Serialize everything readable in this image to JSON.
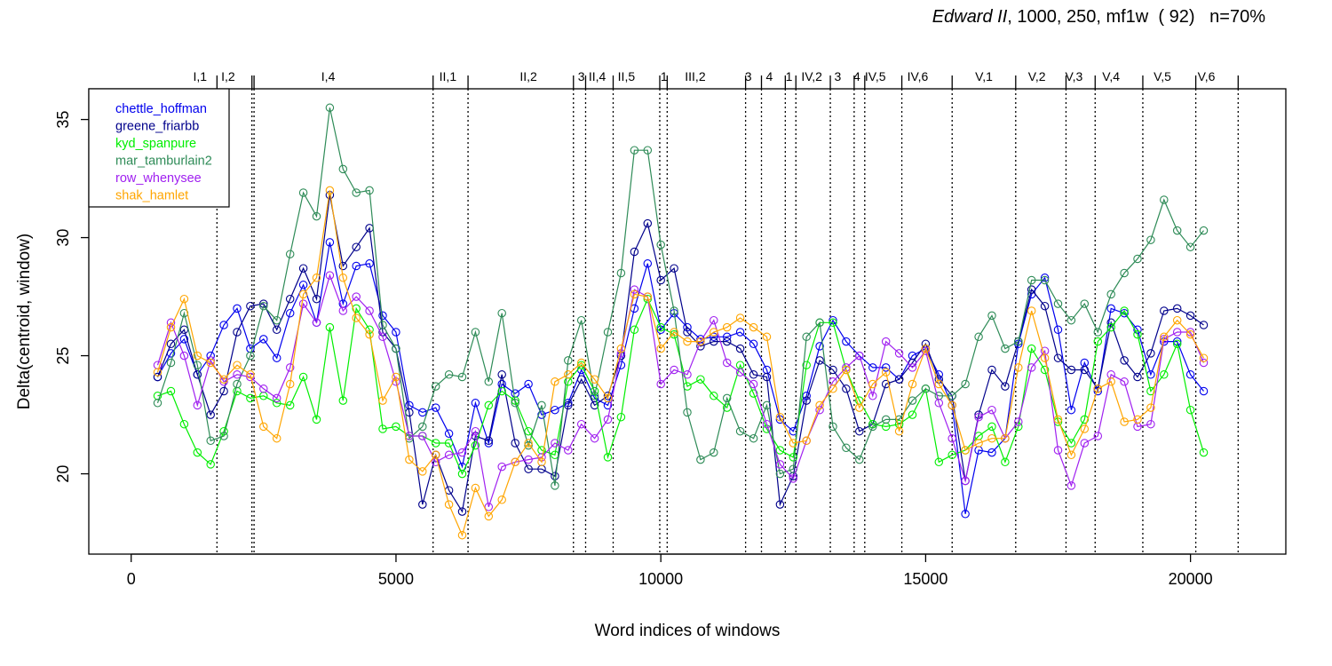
{
  "chart_data": {
    "type": "line",
    "title_play": "Edward II",
    "title_rest": ", 1000, 250, mf1w  ( 92)   n=70%",
    "xlabel": "Word indices of windows",
    "ylabel": "Delta(centroid, window)",
    "xlim": [
      -800,
      21800
    ],
    "ylim": [
      16.6,
      36.3
    ],
    "xticks": [
      0,
      5000,
      10000,
      15000,
      20000
    ],
    "xtick_labels": [
      "0",
      "5000",
      "10000",
      "15000",
      "20000"
    ],
    "yticks": [
      20,
      25,
      30,
      35
    ],
    "ytick_labels": [
      "20",
      "25",
      "30",
      "35"
    ],
    "legend_position": "top-left",
    "scene_boundaries": [
      1620,
      2280,
      2320,
      5700,
      6360,
      8350,
      8580,
      9100,
      9980,
      10120,
      11600,
      11900,
      12350,
      12550,
      13200,
      13650,
      13850,
      14550,
      15500,
      16700,
      17650,
      18200,
      19100,
      20100,
      20900
    ],
    "scene_labels": [
      {
        "label": "I,1",
        "x": 1300
      },
      {
        "label": "I,2",
        "x": 1830
      },
      {
        "label": "I,4",
        "x": 3720
      },
      {
        "label": "II,1",
        "x": 5980
      },
      {
        "label": "II,2",
        "x": 7500
      },
      {
        "label": "3",
        "x": 8500
      },
      {
        "label": "II,4",
        "x": 8800
      },
      {
        "label": "II,5",
        "x": 9350
      },
      {
        "label": "1",
        "x": 10060
      },
      {
        "label": "III,2",
        "x": 10650
      },
      {
        "label": "3",
        "x": 11650
      },
      {
        "label": "4",
        "x": 12050
      },
      {
        "label": "1",
        "x": 12420
      },
      {
        "label": "IV,2",
        "x": 12850
      },
      {
        "label": "3",
        "x": 13340
      },
      {
        "label": "4",
        "x": 13700
      },
      {
        "label": "IV,5",
        "x": 14050
      },
      {
        "label": "IV,6",
        "x": 14850
      },
      {
        "label": "V,1",
        "x": 16100
      },
      {
        "label": "V,2",
        "x": 17100
      },
      {
        "label": "V,3",
        "x": 17800
      },
      {
        "label": "V,4",
        "x": 18500
      },
      {
        "label": "V,5",
        "x": 19470
      },
      {
        "label": "V,6",
        "x": 20300
      }
    ],
    "x": [
      500,
      750,
      1000,
      1250,
      1500,
      1750,
      2000,
      2250,
      2500,
      2750,
      3000,
      3250,
      3500,
      3750,
      4000,
      4250,
      4500,
      4750,
      5000,
      5250,
      5500,
      5750,
      6000,
      6250,
      6500,
      6750,
      7000,
      7250,
      7500,
      7750,
      8000,
      8250,
      8500,
      8750,
      9000,
      9250,
      9500,
      9750,
      10000,
      10250,
      10500,
      10750,
      11000,
      11250,
      11500,
      11750,
      12000,
      12250,
      12500,
      12750,
      13000,
      13250,
      13500,
      13750,
      14000,
      14250,
      14500,
      14750,
      15000,
      15250,
      15500,
      15750,
      16000,
      16250,
      16500,
      16750,
      17000,
      17250,
      17500,
      17750,
      18000,
      18250,
      18500,
      18750,
      19000,
      19250,
      19500,
      19750,
      20000,
      20250
    ],
    "series": [
      {
        "name": "chettle_hoffman",
        "color": "#0000ee",
        "values": [
          24.1,
          25.1,
          25.7,
          24.2,
          25.0,
          26.3,
          27.0,
          25.3,
          25.7,
          24.9,
          26.8,
          28.0,
          26.4,
          29.8,
          27.2,
          28.8,
          28.9,
          26.7,
          26.0,
          22.9,
          22.6,
          22.8,
          21.7,
          20.3,
          23.0,
          21.3,
          23.8,
          23.4,
          23.8,
          22.5,
          22.7,
          23.0,
          24.4,
          23.2,
          22.9,
          24.6,
          27.0,
          28.9,
          26.1,
          26.8,
          26.2,
          25.7,
          25.8,
          25.8,
          26.0,
          25.5,
          24.4,
          22.3,
          21.8,
          23.3,
          25.4,
          26.5,
          25.6,
          25.0,
          24.5,
          24.5,
          24.0,
          25.0,
          25.3,
          24.2,
          22.9,
          18.3,
          21.0,
          20.9,
          21.5,
          25.5,
          27.6,
          28.3,
          26.1,
          22.7,
          24.7,
          23.5,
          27.0,
          26.8,
          26.1,
          24.2,
          25.6,
          25.6,
          24.2,
          23.5
        ]
      },
      {
        "name": "greene_friarbb",
        "color": "#00008b",
        "values": [
          24.1,
          25.5,
          26.1,
          24.2,
          22.5,
          23.5,
          26.0,
          27.1,
          27.2,
          26.1,
          27.4,
          28.7,
          27.4,
          31.8,
          28.8,
          29.6,
          30.4,
          26.0,
          25.3,
          22.6,
          18.7,
          20.8,
          19.3,
          18.4,
          21.6,
          21.4,
          24.2,
          21.3,
          20.2,
          20.2,
          19.9,
          22.9,
          24.0,
          22.9,
          23.3,
          25.0,
          29.4,
          30.6,
          28.2,
          28.7,
          26.0,
          25.4,
          25.6,
          25.6,
          25.3,
          24.2,
          24.1,
          18.7,
          19.9,
          23.1,
          24.8,
          24.4,
          23.6,
          21.8,
          22.1,
          23.8,
          24.0,
          24.7,
          25.5,
          24.0,
          23.3,
          19.7,
          22.5,
          24.4,
          23.7,
          25.6,
          27.8,
          27.1,
          24.9,
          24.4,
          24.4,
          23.6,
          26.4,
          24.8,
          24.1,
          25.1,
          26.9,
          27.0,
          26.7,
          26.3
        ]
      },
      {
        "name": "kyd_spanpure",
        "color": "#00ee00",
        "values": [
          23.3,
          23.5,
          22.1,
          20.9,
          20.4,
          21.8,
          23.5,
          23.2,
          23.3,
          23.0,
          22.9,
          24.1,
          22.3,
          26.2,
          23.1,
          27.0,
          26.1,
          21.9,
          22.0,
          21.6,
          21.6,
          21.3,
          21.3,
          20.0,
          21.2,
          22.9,
          23.5,
          23.1,
          21.8,
          21.0,
          20.8,
          23.9,
          24.6,
          23.5,
          20.7,
          22.4,
          26.1,
          27.4,
          26.2,
          25.9,
          23.7,
          24.0,
          23.3,
          22.8,
          24.6,
          23.4,
          21.9,
          21.0,
          20.7,
          24.6,
          26.4,
          26.4,
          24.4,
          23.1,
          22.1,
          22.0,
          22.1,
          22.5,
          23.6,
          20.5,
          20.8,
          21.0,
          21.6,
          22.0,
          20.5,
          22.0,
          25.3,
          24.4,
          22.2,
          21.3,
          22.3,
          25.6,
          26.2,
          26.9,
          25.9,
          23.5,
          24.2,
          25.5,
          22.7,
          20.9
        ]
      },
      {
        "name": "mar_tamburlain2",
        "color": "#2e8b57",
        "values": [
          23.0,
          24.7,
          26.8,
          24.6,
          21.4,
          21.6,
          23.8,
          25.0,
          27.1,
          26.5,
          29.3,
          31.9,
          30.9,
          35.5,
          32.9,
          31.9,
          32.0,
          26.3,
          25.3,
          21.5,
          22.0,
          23.7,
          24.2,
          24.1,
          26.0,
          23.9,
          26.8,
          23.0,
          21.2,
          22.9,
          19.5,
          24.8,
          26.5,
          23.3,
          26.0,
          28.5,
          33.7,
          33.7,
          29.7,
          26.9,
          22.6,
          20.6,
          20.9,
          23.2,
          21.8,
          21.5,
          22.9,
          20.0,
          20.2,
          25.8,
          26.4,
          22.0,
          21.1,
          20.6,
          22.0,
          22.3,
          22.3,
          23.1,
          23.6,
          23.3,
          23.3,
          23.8,
          25.8,
          26.7,
          25.3,
          25.6,
          28.2,
          28.2,
          27.2,
          26.5,
          27.2,
          26.0,
          27.6,
          28.5,
          29.1,
          29.9,
          31.6,
          30.3,
          29.6,
          30.3
        ]
      },
      {
        "name": "row_whenysee",
        "color": "#a020f0",
        "values": [
          24.6,
          26.4,
          25.0,
          22.9,
          24.8,
          23.9,
          24.2,
          24.1,
          23.6,
          23.2,
          24.5,
          27.2,
          26.4,
          28.4,
          26.9,
          27.5,
          26.9,
          25.8,
          23.9,
          21.6,
          21.6,
          20.5,
          20.8,
          20.9,
          21.8,
          18.6,
          20.3,
          20.5,
          20.6,
          20.7,
          21.3,
          21.0,
          22.1,
          21.5,
          22.3,
          25.1,
          27.8,
          27.5,
          23.8,
          24.4,
          24.2,
          25.6,
          26.5,
          24.7,
          24.3,
          23.8,
          22.1,
          20.4,
          19.8,
          21.4,
          22.7,
          23.9,
          24.5,
          25.0,
          23.3,
          25.6,
          25.1,
          24.5,
          25.2,
          23.0,
          21.5,
          19.7,
          22.4,
          22.7,
          21.5,
          22.2,
          24.5,
          25.2,
          21.0,
          19.5,
          21.3,
          21.6,
          24.2,
          23.9,
          22.0,
          22.1,
          25.7,
          26.0,
          26.0,
          24.7
        ]
      },
      {
        "name": "shak_hamlet",
        "color": "#ffa500",
        "values": [
          24.3,
          26.2,
          27.4,
          25.0,
          24.7,
          24.0,
          24.6,
          24.2,
          22.0,
          21.5,
          23.8,
          27.6,
          28.3,
          32.0,
          28.3,
          26.6,
          25.9,
          23.1,
          24.1,
          20.6,
          20.1,
          20.8,
          18.7,
          17.4,
          19.4,
          18.2,
          18.9,
          20.5,
          21.3,
          20.5,
          23.9,
          24.2,
          24.7,
          24.0,
          23.2,
          25.3,
          27.6,
          27.5,
          25.3,
          26.0,
          25.6,
          25.6,
          26.0,
          26.2,
          26.6,
          26.2,
          25.8,
          22.4,
          21.3,
          21.4,
          22.9,
          23.6,
          24.4,
          22.8,
          23.8,
          24.3,
          21.8,
          23.8,
          25.3,
          23.8,
          22.9,
          21.0,
          21.3,
          21.5,
          21.5,
          24.5,
          26.9,
          24.9,
          22.3,
          20.8,
          21.9,
          23.6,
          23.9,
          22.2,
          22.3,
          22.8,
          25.8,
          26.5,
          25.9,
          24.9
        ]
      }
    ]
  }
}
